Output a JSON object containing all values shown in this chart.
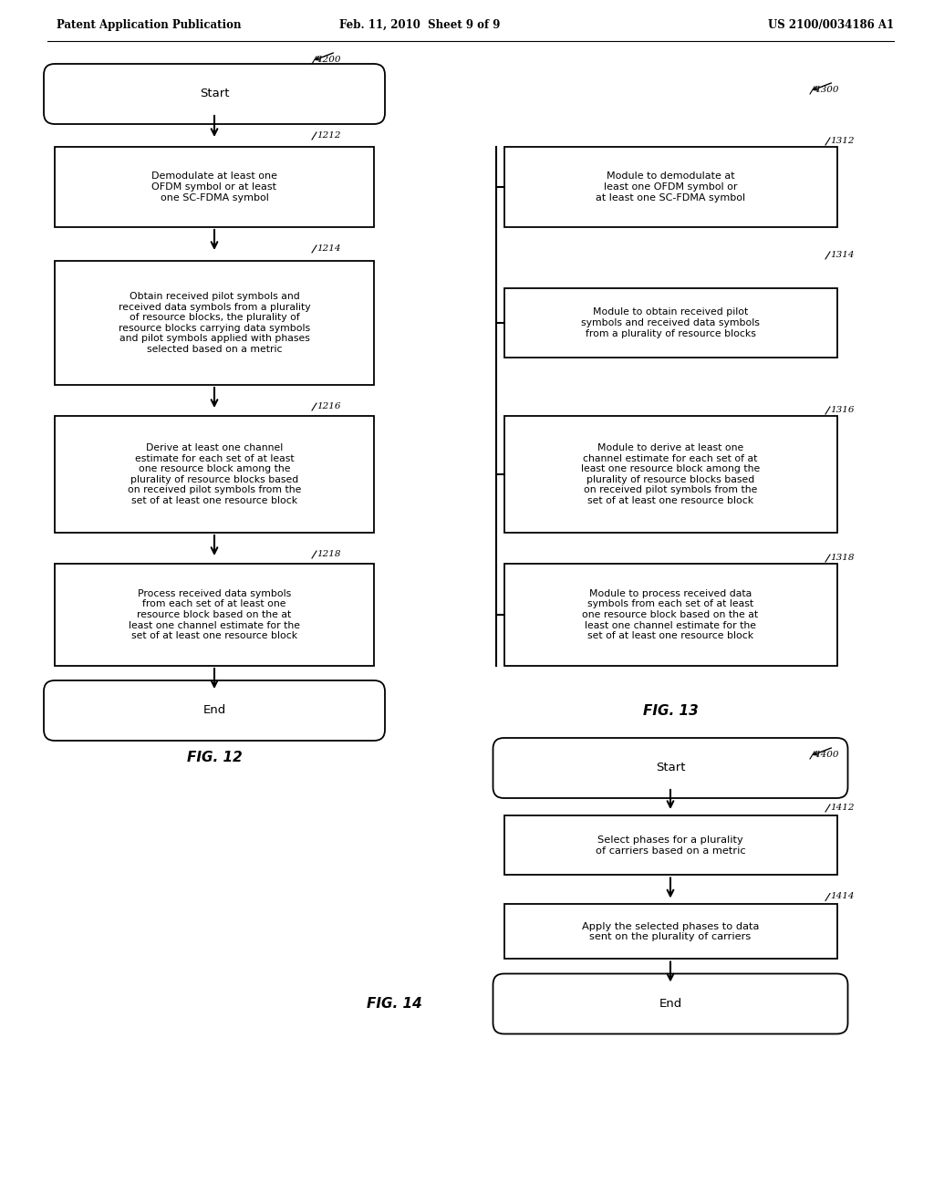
{
  "header_left": "Patent Application Publication",
  "header_center": "Feb. 11, 2010  Sheet 9 of 9",
  "header_right": "US 2100/0034186 A1",
  "bg_color": "#ffffff",
  "fig12_ref": "1200",
  "fig12_start": "Start",
  "fig12_n1212_ref": "1212",
  "fig12_n1212_text": "Demodulate at least one\nOFDM symbol or at least\none SC-FDMA symbol",
  "fig12_n1214_ref": "1214",
  "fig12_n1214_text": "Obtain received pilot symbols and\nreceived data symbols from a plurality\nof resource blocks, the plurality of\nresource blocks carrying data symbols\nand pilot symbols applied with phases\nselected based on a metric",
  "fig12_n1216_ref": "1216",
  "fig12_n1216_text": "Derive at least one channel\nestimate for each set of at least\none resource block among the\nplurality of resource blocks based\non received pilot symbols from the\nset of at least one resource block",
  "fig12_n1218_ref": "1218",
  "fig12_n1218_text": "Process received data symbols\nfrom each set of at least one\nresource block based on the at\nleast one channel estimate for the\nset of at least one resource block",
  "fig12_end": "End",
  "fig12_label": "FIG. 12",
  "fig13_ref": "1300",
  "fig13_n1312_ref": "1312",
  "fig13_n1312_text": "Module to demodulate at\nleast one OFDM symbol or\nat least one SC-FDMA symbol",
  "fig13_n1314_ref": "1314",
  "fig13_n1314_text": "Module to obtain received pilot\nsymbols and received data symbols\nfrom a plurality of resource blocks",
  "fig13_n1316_ref": "1316",
  "fig13_n1316_text": "Module to derive at least one\nchannel estimate for each set of at\nleast one resource block among the\nplurality of resource blocks based\non received pilot symbols from the\nset of at least one resource block",
  "fig13_n1318_ref": "1318",
  "fig13_n1318_text": "Module to process received data\nsymbols from each set of at least\none resource block based on the at\nleast one channel estimate for the\nset of at least one resource block",
  "fig13_label": "FIG. 13",
  "fig14_ref": "1400",
  "fig14_start": "Start",
  "fig14_n1412_ref": "1412",
  "fig14_n1412_text": "Select phases for a plurality\nof carriers based on a metric",
  "fig14_n1414_ref": "1414",
  "fig14_n1414_text": "Apply the selected phases to data\nsent on the plurality of carriers",
  "fig14_end": "End",
  "fig14_label": "FIG. 14"
}
